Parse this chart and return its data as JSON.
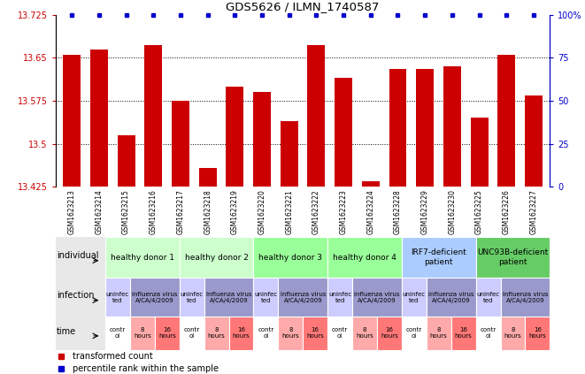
{
  "title": "GDS5626 / ILMN_1740587",
  "samples": [
    "GSM1623213",
    "GSM1623214",
    "GSM1623215",
    "GSM1623216",
    "GSM1623217",
    "GSM1623218",
    "GSM1623219",
    "GSM1623220",
    "GSM1623221",
    "GSM1623222",
    "GSM1623223",
    "GSM1623224",
    "GSM1623228",
    "GSM1623229",
    "GSM1623230",
    "GSM1623225",
    "GSM1623226",
    "GSM1623227"
  ],
  "values": [
    13.655,
    13.665,
    13.515,
    13.672,
    13.575,
    13.457,
    13.6,
    13.59,
    13.54,
    13.672,
    13.615,
    13.435,
    13.63,
    13.63,
    13.635,
    13.545,
    13.655,
    13.585
  ],
  "percentiles": [
    100,
    100,
    100,
    100,
    100,
    100,
    100,
    100,
    100,
    100,
    100,
    100,
    100,
    100,
    100,
    100,
    100,
    100
  ],
  "ylim_left": [
    13.425,
    13.725
  ],
  "yticks_left": [
    13.425,
    13.5,
    13.575,
    13.65,
    13.725
  ],
  "ytick_labels_left": [
    "13.425",
    "13.5",
    "13.575",
    "13.65",
    "13.725"
  ],
  "ylim_right": [
    0,
    100
  ],
  "yticks_right": [
    0,
    25,
    50,
    75,
    100
  ],
  "ytick_labels_right": [
    "0",
    "25",
    "50",
    "75",
    "100%"
  ],
  "bar_color": "#cc0000",
  "dot_color": "#0000cc",
  "bar_width": 0.65,
  "individual_groups": [
    {
      "label": "healthy donor 1",
      "start": 0,
      "end": 2,
      "color": "#ccffcc"
    },
    {
      "label": "healthy donor 2",
      "start": 3,
      "end": 5,
      "color": "#ccffcc"
    },
    {
      "label": "healthy donor 3",
      "start": 6,
      "end": 8,
      "color": "#99ff99"
    },
    {
      "label": "healthy donor 4",
      "start": 9,
      "end": 11,
      "color": "#99ff99"
    },
    {
      "label": "IRF7-deficient\npatient",
      "start": 12,
      "end": 14,
      "color": "#aaccff"
    },
    {
      "label": "UNC93B-deficient\npatient",
      "start": 15,
      "end": 17,
      "color": "#66cc66"
    }
  ],
  "infection_groups": [
    {
      "label": "uninfec\nted",
      "start": 0,
      "end": 0,
      "color": "#ccccff"
    },
    {
      "label": "influenza virus\nA/CA/4/2009",
      "start": 1,
      "end": 2,
      "color": "#9999cc"
    },
    {
      "label": "uninfec\nted",
      "start": 3,
      "end": 3,
      "color": "#ccccff"
    },
    {
      "label": "influenza virus\nA/CA/4/2009",
      "start": 4,
      "end": 5,
      "color": "#9999cc"
    },
    {
      "label": "uninfec\nted",
      "start": 6,
      "end": 6,
      "color": "#ccccff"
    },
    {
      "label": "influenza virus\nA/CA/4/2009",
      "start": 7,
      "end": 8,
      "color": "#9999cc"
    },
    {
      "label": "uninfec\nted",
      "start": 9,
      "end": 9,
      "color": "#ccccff"
    },
    {
      "label": "influenza virus\nA/CA/4/2009",
      "start": 10,
      "end": 11,
      "color": "#9999cc"
    },
    {
      "label": "uninfec\nted",
      "start": 12,
      "end": 12,
      "color": "#ccccff"
    },
    {
      "label": "influenza virus\nA/CA/4/2009",
      "start": 13,
      "end": 14,
      "color": "#9999cc"
    },
    {
      "label": "uninfec\nted",
      "start": 15,
      "end": 15,
      "color": "#ccccff"
    },
    {
      "label": "influenza virus\nA/CA/4/2009",
      "start": 16,
      "end": 17,
      "color": "#9999cc"
    }
  ],
  "time_labels": [
    "contr\nol",
    "8\nhours",
    "16\nhours",
    "contr\nol",
    "8\nhours",
    "16\nhours",
    "contr\nol",
    "8\nhours",
    "16\nhours",
    "contr\nol",
    "8\nhours",
    "16\nhours",
    "contr\nol",
    "8\nhours",
    "16\nhours",
    "contr\nol",
    "8\nhours",
    "16\nhours"
  ],
  "time_colors": [
    "#ffffff",
    "#ffaaaa",
    "#ff7777",
    "#ffffff",
    "#ffaaaa",
    "#ff7777",
    "#ffffff",
    "#ffaaaa",
    "#ff7777",
    "#ffffff",
    "#ffaaaa",
    "#ff7777",
    "#ffffff",
    "#ffaaaa",
    "#ff7777",
    "#ffffff",
    "#ffaaaa",
    "#ff7777"
  ],
  "legend_red_label": "transformed count",
  "legend_blue_label": "percentile rank within the sample",
  "bg_color": "#e8e8e8"
}
